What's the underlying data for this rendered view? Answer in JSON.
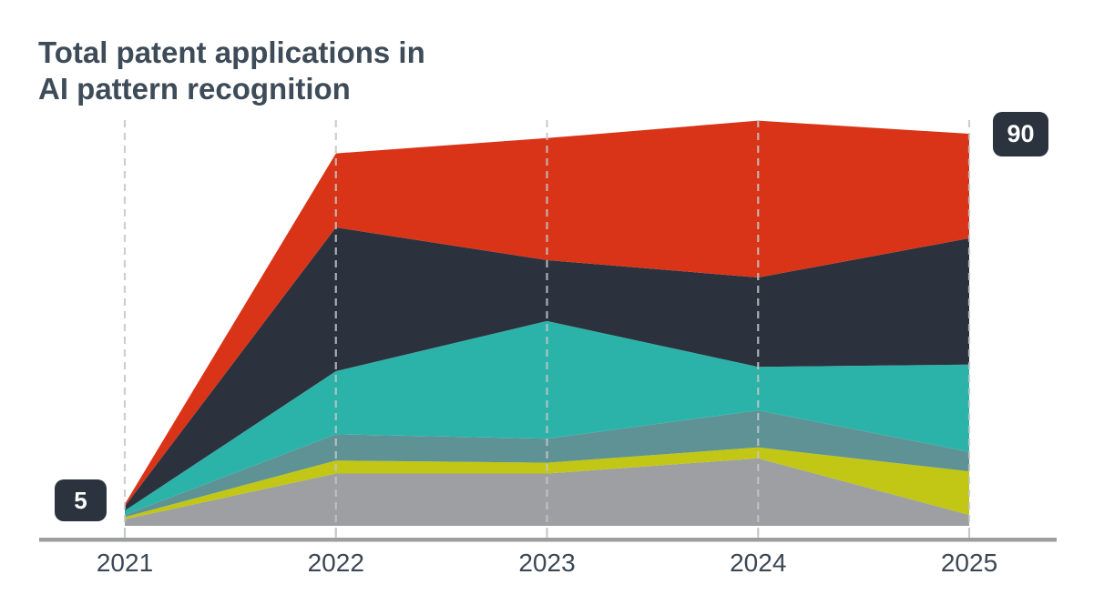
{
  "title": {
    "line1": "Total patent applications in",
    "line2": "AI pattern recognition",
    "full": "Total patent applications in AI pattern recognition"
  },
  "annotations": {
    "start_value": "5",
    "end_value": "90"
  },
  "colors": {
    "title_text": "#3e4b58",
    "badge_background": "#2b333e",
    "badge_text": "#ffffff",
    "axis_line": "#9c9ea1",
    "gridline": "#c3c5c7",
    "axis_label_text": "#3b4754"
  },
  "chart_data": {
    "type": "area",
    "stacked": true,
    "title": "Total patent applications in AI pattern recognition",
    "categories": [
      "2021",
      "2022",
      "2023",
      "2024",
      "2025"
    ],
    "series": [
      {
        "name": "gray",
        "color": "#9d9fa2",
        "values": [
          1.5,
          12,
          12,
          15.5,
          2.5
        ]
      },
      {
        "name": "yellow-green",
        "color": "#c1c714",
        "values": [
          0.5,
          3,
          2.5,
          2.5,
          10
        ]
      },
      {
        "name": "teal-gray",
        "color": "#5f9295",
        "values": [
          0.5,
          6,
          5.5,
          8.5,
          4.5
        ]
      },
      {
        "name": "teal",
        "color": "#2cb3a9",
        "values": [
          1,
          14.5,
          27,
          10,
          20
        ]
      },
      {
        "name": "dark-charcoal",
        "color": "#2b323e",
        "values": [
          1,
          33,
          14,
          20.5,
          29
        ]
      },
      {
        "name": "red",
        "color": "#d93418",
        "values": [
          0.5,
          17,
          28,
          36,
          24
        ]
      }
    ],
    "totals": [
      5,
      85.5,
      89,
      93,
      90
    ],
    "labeled_points": [
      {
        "category": "2021",
        "total": 5
      },
      {
        "category": "2025",
        "total": 90
      }
    ],
    "xlabel": "",
    "ylabel": "",
    "ylim": [
      0,
      94
    ],
    "legend": "none",
    "grid": "vertical-dashed"
  }
}
